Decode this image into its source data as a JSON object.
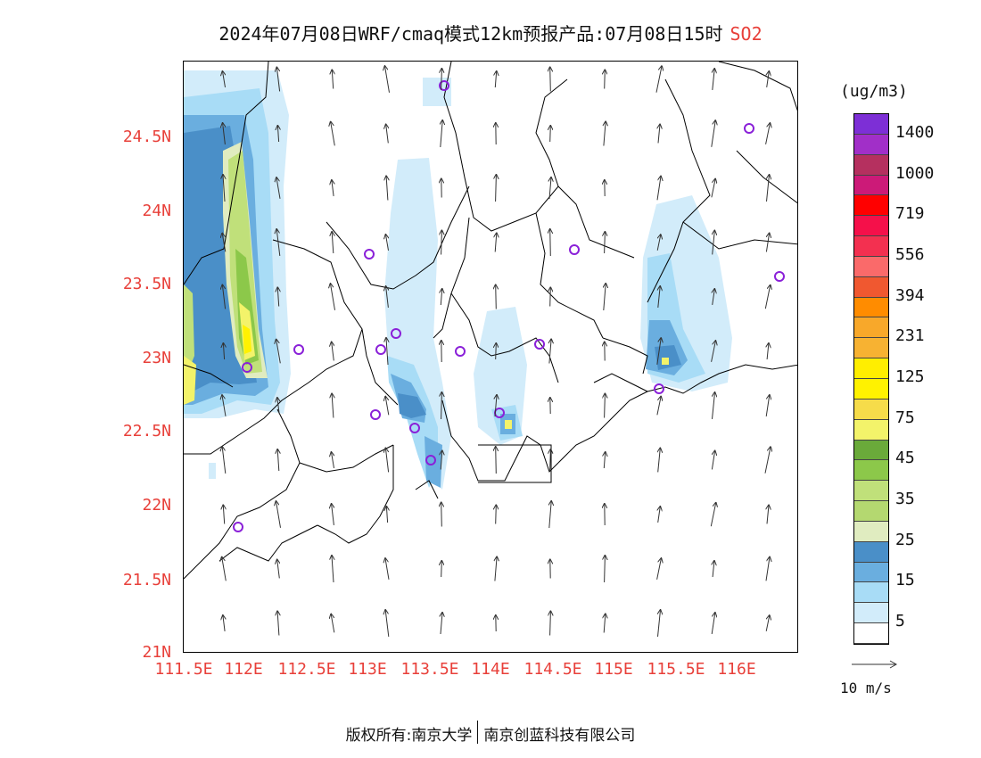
{
  "title": {
    "main": "2024年07月08日WRF/cmaq模式12km预报产品:07月08日15时",
    "species": "SO2"
  },
  "axes": {
    "lat_ticks": [
      "24.5N",
      "24N",
      "23.5N",
      "23N",
      "22.5N",
      "22N",
      "21.5N",
      "21N"
    ],
    "lon_ticks": [
      "111.5E",
      "112E",
      "112.5E",
      "113E",
      "113.5E",
      "114E",
      "114.5E",
      "115E",
      "115.5E",
      "116E"
    ]
  },
  "legend": {
    "unit": "(ug/m3)",
    "levels": [
      "1400",
      "1000",
      "719",
      "556",
      "394",
      "231",
      "125",
      "75",
      "45",
      "35",
      "25",
      "15",
      "5"
    ],
    "colors": [
      "#7d2fd6",
      "#a12fc8",
      "#b5305f",
      "#cc1a78",
      "#ff0000",
      "#f5104a",
      "#f33050",
      "#fa6a6a",
      "#f05830",
      "#ff8c00",
      "#f8a82a",
      "#f7b232",
      "#ffee00",
      "#fff200",
      "#f6dc4a",
      "#f3f36a",
      "#6aaa3a",
      "#8cc84a",
      "#c0e07a",
      "#b4d870",
      "#e0ecc0",
      "#4a8fc8",
      "#6aaedf",
      "#a8dcf6",
      "#d2ecfa",
      "#ffffff"
    ]
  },
  "wind_reference": {
    "label": "10 m/s"
  },
  "footer": {
    "left": "版权所有:南京大学",
    "right": "南京创蓝科技有限公司"
  }
}
